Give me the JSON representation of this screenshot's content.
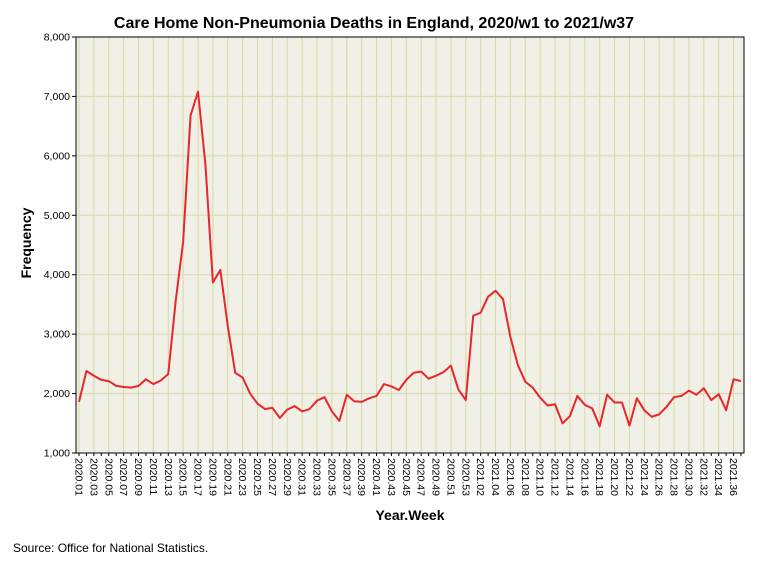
{
  "source_note": "Source: Office for National Statistics.",
  "chart_data": {
    "type": "line",
    "title": "Care Home Non-Pneumonia Deaths in England, 2020/w1 to 2021/w37",
    "xlabel": "Year.Week",
    "ylabel": "Frequency",
    "ylim": [
      1000,
      8000
    ],
    "yticks": [
      "1,000",
      "2,000",
      "3,000",
      "4,000",
      "5,000",
      "6,000",
      "7,000",
      "8,000"
    ],
    "ytick_values": [
      1000,
      2000,
      3000,
      4000,
      5000,
      6000,
      7000,
      8000
    ],
    "grid": true,
    "colors": {
      "line": "#e8262b",
      "plot_bg": "#f0f0e6",
      "grid": "#d7d8a9",
      "axis": "#000000"
    },
    "x": [
      "2020.01",
      "2020.02",
      "2020.03",
      "2020.04",
      "2020.05",
      "2020.06",
      "2020.07",
      "2020.08",
      "2020.09",
      "2020.10",
      "2020.11",
      "2020.12",
      "2020.13",
      "2020.14",
      "2020.15",
      "2020.16",
      "2020.17",
      "2020.18",
      "2020.19",
      "2020.20",
      "2020.21",
      "2020.22",
      "2020.23",
      "2020.24",
      "2020.25",
      "2020.26",
      "2020.27",
      "2020.28",
      "2020.29",
      "2020.30",
      "2020.31",
      "2020.32",
      "2020.33",
      "2020.34",
      "2020.35",
      "2020.36",
      "2020.37",
      "2020.38",
      "2020.39",
      "2020.40",
      "2020.41",
      "2020.42",
      "2020.43",
      "2020.44",
      "2020.45",
      "2020.46",
      "2020.47",
      "2020.48",
      "2020.49",
      "2020.50",
      "2020.51",
      "2020.52",
      "2020.53",
      "2021.01",
      "2021.02",
      "2021.03",
      "2021.04",
      "2021.05",
      "2021.06",
      "2021.07",
      "2021.08",
      "2021.09",
      "2021.10",
      "2021.11",
      "2021.12",
      "2021.13",
      "2021.14",
      "2021.15",
      "2021.16",
      "2021.17",
      "2021.18",
      "2021.19",
      "2021.20",
      "2021.21",
      "2021.22",
      "2021.23",
      "2021.24",
      "2021.25",
      "2021.26",
      "2021.27",
      "2021.28",
      "2021.29",
      "2021.30",
      "2021.31",
      "2021.32",
      "2021.33",
      "2021.34",
      "2021.35",
      "2021.36",
      "2021.37"
    ],
    "xtick_labels": [
      "2020.01",
      "2020.03",
      "2020.05",
      "2020.07",
      "2020.09",
      "2020.11",
      "2020.13",
      "2020.15",
      "2020.17",
      "2020.19",
      "2020.21",
      "2020.23",
      "2020.25",
      "2020.27",
      "2020.29",
      "2020.31",
      "2020.33",
      "2020.35",
      "2020.37",
      "2020.39",
      "2020.41",
      "2020.43",
      "2020.45",
      "2020.47",
      "2020.49",
      "2020.51",
      "2020.53",
      "2021.02",
      "2021.04",
      "2021.06",
      "2021.08",
      "2021.10",
      "2021.12",
      "2021.14",
      "2021.16",
      "2021.18",
      "2021.20",
      "2021.22",
      "2021.24",
      "2021.26",
      "2021.28",
      "2021.30",
      "2021.32",
      "2021.34",
      "2021.36"
    ],
    "series": [
      {
        "values": [
          1860,
          2380,
          2300,
          2230,
          2210,
          2130,
          2110,
          2100,
          2130,
          2240,
          2160,
          2220,
          2330,
          3560,
          4550,
          6680,
          7080,
          5850,
          3870,
          4080,
          3140,
          2350,
          2270,
          2000,
          1830,
          1740,
          1760,
          1590,
          1730,
          1790,
          1700,
          1740,
          1880,
          1940,
          1700,
          1540,
          1980,
          1870,
          1860,
          1920,
          1960,
          2160,
          2120,
          2060,
          2230,
          2350,
          2370,
          2250,
          2300,
          2360,
          2470,
          2070,
          1890,
          3310,
          3360,
          3630,
          3730,
          3590,
          2950,
          2480,
          2200,
          2100,
          1930,
          1800,
          1820,
          1500,
          1620,
          1960,
          1810,
          1750,
          1450,
          1980,
          1850,
          1850,
          1460,
          1920,
          1720,
          1610,
          1650,
          1780,
          1940,
          1960,
          2050,
          1980,
          2090,
          1890,
          1990,
          1720,
          2240,
          2210
        ]
      }
    ]
  }
}
